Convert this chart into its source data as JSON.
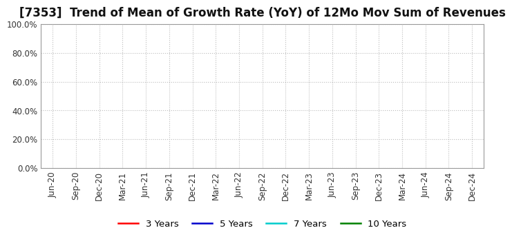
{
  "title": "[7353]  Trend of Mean of Growth Rate (YoY) of 12Mo Mov Sum of Revenues",
  "ylim": [
    0.0,
    1.0
  ],
  "yticks": [
    0.0,
    0.2,
    0.4,
    0.6,
    0.8,
    1.0
  ],
  "ytick_labels": [
    "0.0%",
    "20.0%",
    "40.0%",
    "60.0%",
    "80.0%",
    "100.0%"
  ],
  "background_color": "#ffffff",
  "plot_bg_color": "#ffffff",
  "grid_color": "#bbbbbb",
  "legend": [
    {
      "label": "3 Years",
      "color": "#ff0000"
    },
    {
      "label": "5 Years",
      "color": "#0000cc"
    },
    {
      "label": "7 Years",
      "color": "#00cccc"
    },
    {
      "label": "10 Years",
      "color": "#008000"
    }
  ],
  "xtick_labels": [
    "Jun-20",
    "Sep-20",
    "Dec-20",
    "Mar-21",
    "Jun-21",
    "Sep-21",
    "Dec-21",
    "Mar-22",
    "Jun-22",
    "Sep-22",
    "Dec-22",
    "Mar-23",
    "Jun-23",
    "Sep-23",
    "Dec-23",
    "Mar-24",
    "Jun-24",
    "Sep-24",
    "Dec-24"
  ],
  "title_fontsize": 12,
  "tick_fontsize": 8.5,
  "legend_fontsize": 9.5
}
